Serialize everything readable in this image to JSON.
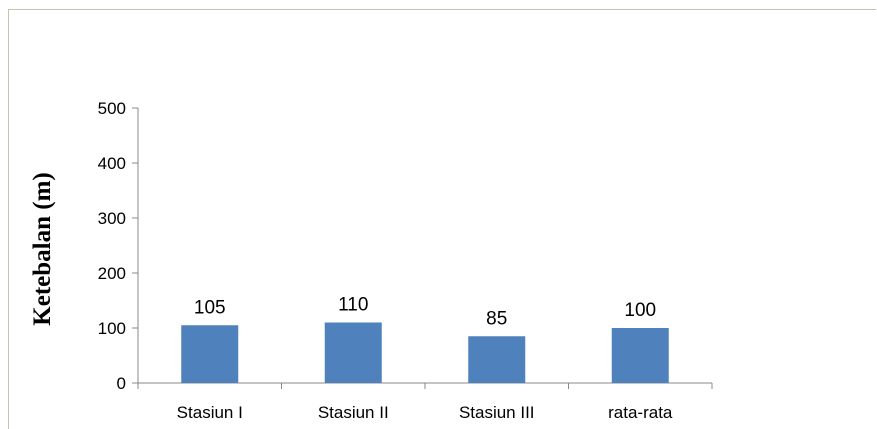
{
  "chart_data": {
    "type": "bar",
    "title": "",
    "xlabel": "",
    "ylabel": "Ketebalan (m)",
    "categories": [
      "Stasiun I",
      "Stasiun II",
      "Stasiun III",
      "rata-rata"
    ],
    "values": [
      105,
      110,
      85,
      100
    ],
    "data_labels": [
      "105",
      "110",
      "85",
      "100"
    ],
    "ylim": [
      0,
      500
    ],
    "yticks": [
      "0",
      "100",
      "200",
      "300",
      "400",
      "500"
    ],
    "grid": false,
    "legend": "none",
    "bar_color": "#4f81bd"
  }
}
